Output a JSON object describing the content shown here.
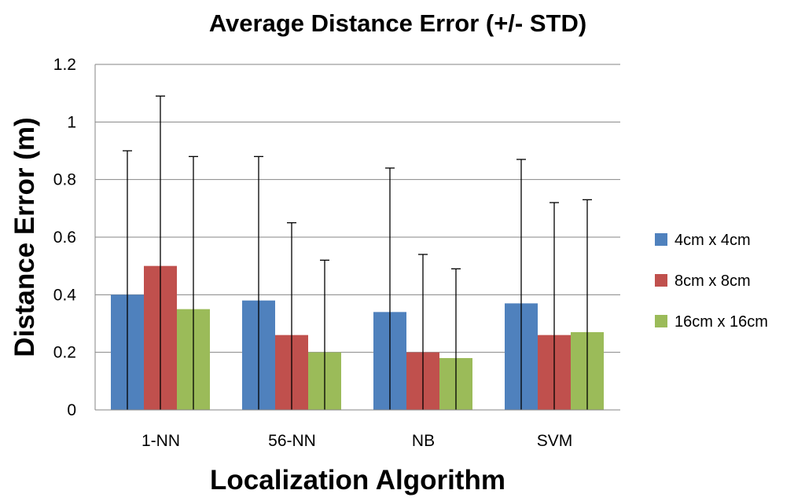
{
  "chart_data": {
    "type": "bar",
    "title": "Average Distance Error (+/- STD)",
    "xlabel": "Localization Algorithm",
    "ylabel": "Distance Error (m)",
    "categories": [
      "1-NN",
      "56-NN",
      "NB",
      "SVM"
    ],
    "ylim": [
      0,
      1.2
    ],
    "yticks": [
      "0",
      "0.2",
      "0.4",
      "0.6",
      "0.8",
      "1",
      "1.2"
    ],
    "grid": true,
    "legend_position": "right",
    "series": [
      {
        "name": "4cm x 4cm",
        "color": "#4F81BD",
        "values": [
          0.4,
          0.38,
          0.34,
          0.37
        ],
        "error_top": [
          0.9,
          0.88,
          0.84,
          0.87
        ]
      },
      {
        "name": "8cm x 8cm",
        "color": "#C0504D",
        "values": [
          0.5,
          0.26,
          0.2,
          0.26
        ],
        "error_top": [
          1.09,
          0.65,
          0.54,
          0.72
        ]
      },
      {
        "name": "16cm x 16cm",
        "color": "#9BBB59",
        "values": [
          0.35,
          0.2,
          0.18,
          0.27
        ],
        "error_top": [
          0.88,
          0.52,
          0.49,
          0.73
        ]
      }
    ]
  }
}
